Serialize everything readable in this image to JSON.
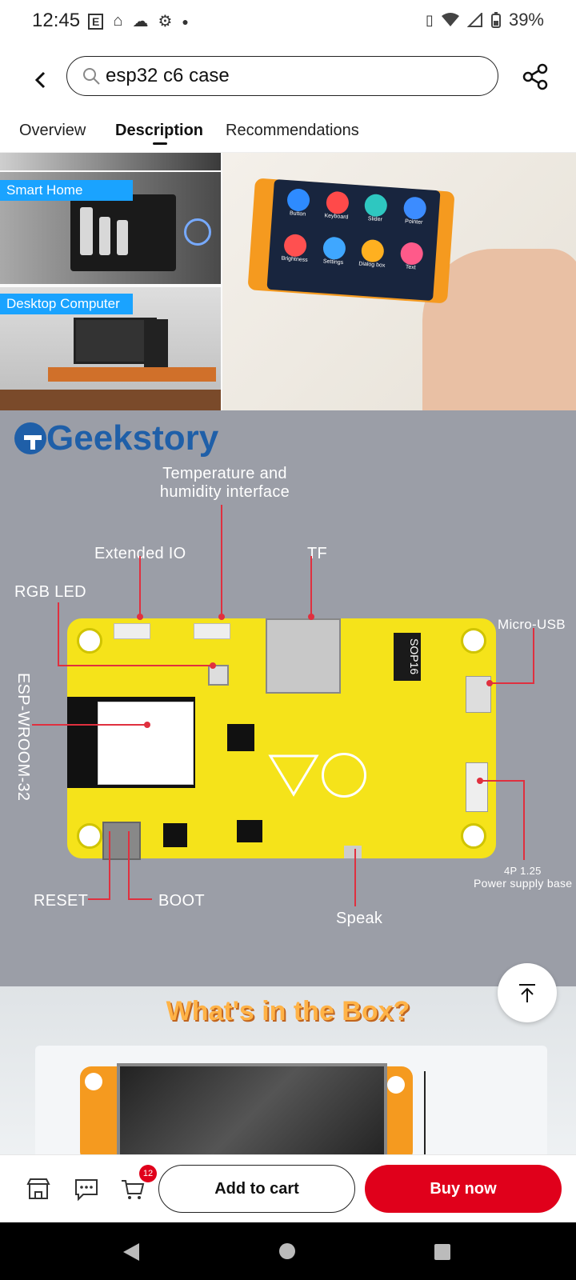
{
  "status_bar": {
    "time": "12:45",
    "battery": "39%",
    "left_icons": [
      "email-icon",
      "home-icon",
      "cloud-icon",
      "gear-icon",
      "dot-icon"
    ],
    "right_icons": [
      "vibrate-icon",
      "wifi-icon",
      "signal-icon",
      "battery-icon"
    ]
  },
  "search": {
    "query": "esp32 c6 case"
  },
  "tabs": [
    {
      "label": "Overview"
    },
    {
      "label": "Description"
    },
    {
      "label": "Recommendations"
    }
  ],
  "active_tab": "Description",
  "product_images": {
    "scene_labels": [
      "Smart Home",
      "Desktop Computer"
    ],
    "screen_apps": [
      "Button",
      "Keyboard",
      "Slider",
      "Pointer",
      "Brightness",
      "Settings",
      "Dialog box",
      "Text"
    ],
    "brand": "Geekstory",
    "annotations": {
      "temp_humidity": "Temperature and\nhumidity interface",
      "extended_io": "Extended IO",
      "tf": "TF",
      "rgb_led": "RGB LED",
      "micro_usb": "Micro-USB",
      "esp_module": "ESP-WROOM-32",
      "power_base_line1": "4P 1.25",
      "power_base_line2": "Power supply base",
      "reset": "RESET",
      "boot": "BOOT",
      "speak": "Speak"
    },
    "chip_label": "SOP16",
    "box_title": "What's  in the Box?"
  },
  "bottom_bar": {
    "cart_count": "12",
    "add_to_cart": "Add to cart",
    "buy_now": "Buy now"
  },
  "colors": {
    "accent_red": "#e0001b",
    "board_yellow": "#f5e31a",
    "annot_red": "#e0303f"
  }
}
